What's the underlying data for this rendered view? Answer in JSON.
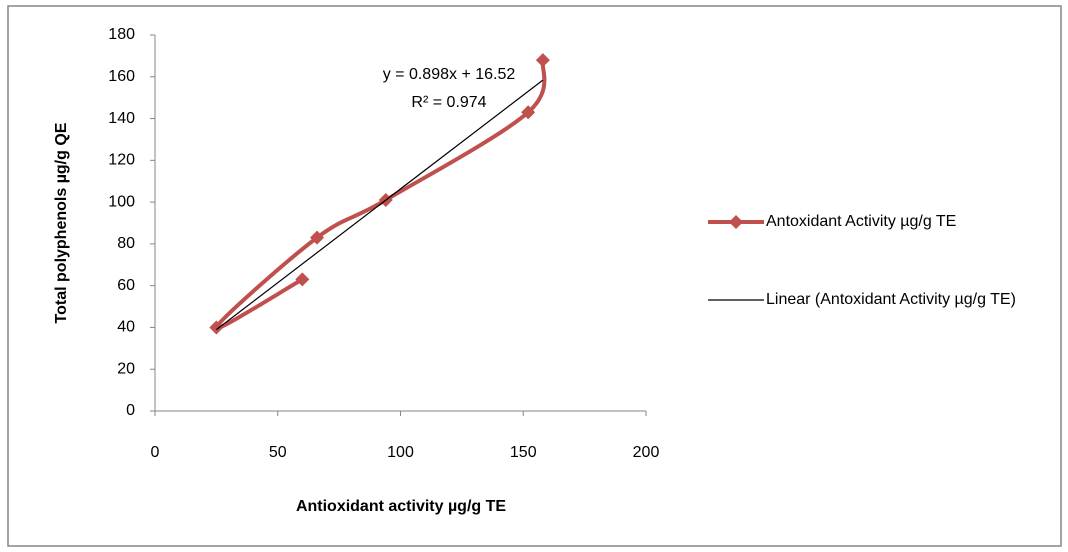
{
  "chart_data": {
    "type": "scatter",
    "x_label": "Antioxidant activity µg/g TE",
    "y_label": "Total polyphenols µg/g QE",
    "series": [
      {
        "name": "Antoxidant Activity µg/g TE",
        "color": "#c0504d",
        "x": [
          60,
          25,
          66,
          94,
          152,
          158
        ],
        "values": [
          63,
          40,
          83,
          101,
          143,
          168
        ]
      }
    ],
    "trendline": {
      "name": "Linear (Antoxidant Activity µg/g TE)",
      "color": "#000000",
      "slope": 0.898,
      "intercept": 16.52,
      "equation": "y = 0.898x + 16.52",
      "r_squared": "R² = 0.974"
    },
    "xlim": [
      0,
      200
    ],
    "xticks": [
      0,
      50,
      100,
      150,
      200
    ],
    "ylim": [
      0,
      180
    ],
    "yticks": [
      0,
      20,
      40,
      60,
      80,
      100,
      120,
      140,
      160,
      180
    ],
    "legend": "right"
  }
}
